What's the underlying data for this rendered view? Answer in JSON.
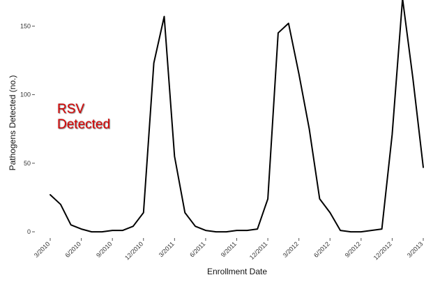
{
  "chart_data": {
    "type": "line",
    "title": "",
    "xlabel": "Enrollment Date",
    "ylabel": "Pathogens Detected (no.)",
    "ylim": [
      -2,
      168
    ],
    "y_ticks": [
      0,
      50,
      100,
      150
    ],
    "grid": false,
    "legend": "none",
    "x_tick_labels": [
      "3/2010",
      "6/2010",
      "9/2010",
      "12/2010",
      "3/2011",
      "6/2011",
      "9/2011",
      "12/2011",
      "3/2012",
      "6/2012",
      "9/2012",
      "12/2012",
      "3/2013"
    ],
    "annotation": {
      "line1": "RSV",
      "line2": "Detected"
    },
    "line_color": "#000000",
    "annotation_color": "#d40000",
    "series": [
      {
        "name": "RSV",
        "x": [
          0,
          1,
          2,
          3,
          4,
          5,
          6,
          7,
          8,
          9,
          10,
          11,
          12,
          13,
          14,
          15,
          16,
          17,
          18,
          19,
          20,
          21,
          22,
          23,
          24,
          25,
          26,
          27,
          28,
          29,
          30,
          31,
          32,
          33,
          34,
          35,
          36
        ],
        "values": [
          27,
          20,
          5,
          2,
          0,
          0,
          1,
          1,
          4,
          14,
          123,
          157,
          55,
          14,
          4,
          1,
          0,
          0,
          1,
          1,
          2,
          24,
          145,
          152,
          115,
          75,
          24,
          14,
          1,
          0,
          0,
          1,
          2,
          71,
          170,
          112,
          47
        ]
      }
    ]
  }
}
